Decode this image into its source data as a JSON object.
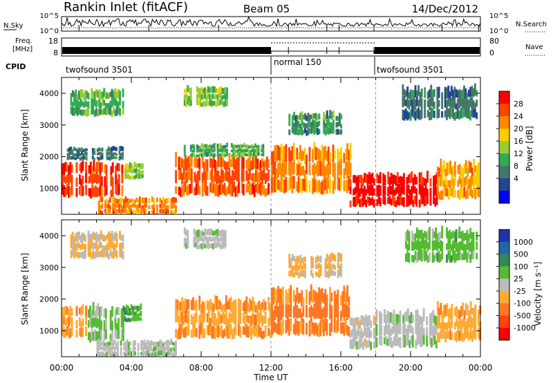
{
  "header": {
    "station": "Rankin Inlet (fitACF)",
    "beam": "Beam 05",
    "date": "14/Dec/2012"
  },
  "noise_panel": {
    "left_label": "N.Sky",
    "left_ticks": [
      "10^5",
      "10^0"
    ],
    "right_label": "N.Search",
    "right_ticks": [
      "10^5",
      "10^0"
    ]
  },
  "freq_panel": {
    "left_label_line1": "Freq.",
    "left_label_line2": "[MHz]",
    "left_ticks": [
      "18",
      "8"
    ],
    "right_label": "Nave",
    "right_ticks": [
      "80",
      "0"
    ]
  },
  "cpid": {
    "label": "CPID",
    "modes": [
      {
        "name": "twofsound 3501",
        "start_hour": 0,
        "end_hour": 12
      },
      {
        "name": "normal 150",
        "start_hour": 12,
        "end_hour": 18
      },
      {
        "name": "twofsound 3501",
        "start_hour": 18,
        "end_hour": 24
      }
    ]
  },
  "power_legend": {
    "title": "Power [dB]",
    "ticks": [
      "28",
      "24",
      "20",
      "16",
      "12",
      "8",
      "4"
    ],
    "colors": [
      "#ff0000",
      "#ff4400",
      "#ff8800",
      "#ffcc00",
      "#99cc33",
      "#33aa55",
      "#447766",
      "#224499",
      "#0000ff"
    ]
  },
  "velocity_legend": {
    "title": "Velocity [m s⁻¹]",
    "ticks": [
      "1000",
      "500",
      "100",
      "25",
      "-25",
      "-100",
      "-500",
      "-1000"
    ],
    "colors": [
      "#2233aa",
      "#2266aa",
      "#338855",
      "#55bb33",
      "#bbbbbb",
      "#ffaa33",
      "#ff7722",
      "#ff4411",
      "#ff0000"
    ]
  },
  "x_axis": {
    "label": "Time UT",
    "ticks": [
      "00:00",
      "04:00",
      "08:00",
      "12:00",
      "16:00",
      "20:00",
      "00:00"
    ]
  },
  "chart_data": [
    {
      "type": "heatmap",
      "title": "Power",
      "xlabel": "Time UT",
      "ylabel": "Slant Range [km]",
      "yticks": [
        "1000",
        "2000",
        "3000",
        "4000"
      ],
      "xlim": [
        0,
        24
      ],
      "ylim": [
        180,
        4500
      ],
      "colorbar_label": "Power [dB]",
      "colorbar_range": [
        0,
        30
      ],
      "bands": [
        {
          "t0": 0,
          "t1": 3.5,
          "r0": 750,
          "r1": 1850,
          "v": 26
        },
        {
          "t0": 3.6,
          "t1": 4.6,
          "r0": 1300,
          "r1": 1800,
          "v": 14
        },
        {
          "t0": 6.5,
          "t1": 12,
          "r0": 800,
          "r1": 2000,
          "v": 24
        },
        {
          "t0": 12,
          "t1": 16.5,
          "r0": 900,
          "r1": 2300,
          "v": 22
        },
        {
          "t0": 16.5,
          "t1": 21.5,
          "r0": 450,
          "r1": 1450,
          "v": 29
        },
        {
          "t0": 21.5,
          "t1": 24,
          "r0": 700,
          "r1": 1800,
          "v": 20
        },
        {
          "t0": 0.5,
          "t1": 3.5,
          "r0": 3300,
          "r1": 4100,
          "v": 12
        },
        {
          "t0": 7.0,
          "t1": 9.5,
          "r0": 3600,
          "r1": 4200,
          "v": 14
        },
        {
          "t0": 7.0,
          "t1": 11.5,
          "r0": 2000,
          "r1": 2400,
          "v": 12
        },
        {
          "t0": 19.5,
          "t1": 23.8,
          "r0": 3200,
          "r1": 4200,
          "v": 8
        },
        {
          "t0": 0.3,
          "t1": 3.5,
          "r0": 1900,
          "r1": 2300,
          "v": 8
        },
        {
          "t0": 2,
          "t1": 6.5,
          "r0": 200,
          "r1": 700,
          "v": 22
        },
        {
          "t0": 13,
          "t1": 16,
          "r0": 2700,
          "r1": 3400,
          "v": 10
        }
      ]
    },
    {
      "type": "heatmap",
      "title": "Velocity",
      "xlabel": "Time UT",
      "ylabel": "Slant Range [km]",
      "yticks": [
        "1000",
        "2000",
        "3000",
        "4000"
      ],
      "xlim": [
        0,
        24
      ],
      "ylim": [
        180,
        4500
      ],
      "colorbar_label": "Velocity [m s⁻¹]",
      "colorbar_range": [
        -1000,
        1000
      ],
      "bands": [
        {
          "t0": 0,
          "t1": 1.5,
          "r0": 800,
          "r1": 1800,
          "v": -300
        },
        {
          "t0": 1.5,
          "t1": 3.5,
          "r0": 700,
          "r1": 1800,
          "v": 150
        },
        {
          "t0": 3.5,
          "t1": 4.6,
          "r0": 1300,
          "r1": 1800,
          "v": 300
        },
        {
          "t0": 6.5,
          "t1": 12,
          "r0": 800,
          "r1": 2000,
          "v": -300
        },
        {
          "t0": 12,
          "t1": 16.5,
          "r0": 900,
          "r1": 2300,
          "v": -400
        },
        {
          "t0": 16.5,
          "t1": 18,
          "r0": 450,
          "r1": 1450,
          "v": 0
        },
        {
          "t0": 18,
          "t1": 21.5,
          "r0": 500,
          "r1": 1600,
          "v": 60
        },
        {
          "t0": 21.5,
          "t1": 24,
          "r0": 700,
          "r1": 1800,
          "v": -250
        },
        {
          "t0": 0.5,
          "t1": 3.5,
          "r0": 3300,
          "r1": 4100,
          "v": -120
        },
        {
          "t0": 7.0,
          "t1": 9.5,
          "r0": 3600,
          "r1": 4200,
          "v": 40
        },
        {
          "t0": 19.5,
          "t1": 23.8,
          "r0": 3200,
          "r1": 4200,
          "v": 200
        },
        {
          "t0": 2,
          "t1": 6.5,
          "r0": 200,
          "r1": 700,
          "v": 60
        },
        {
          "t0": 13,
          "t1": 16,
          "r0": 2700,
          "r1": 3400,
          "v": -150
        }
      ]
    }
  ]
}
